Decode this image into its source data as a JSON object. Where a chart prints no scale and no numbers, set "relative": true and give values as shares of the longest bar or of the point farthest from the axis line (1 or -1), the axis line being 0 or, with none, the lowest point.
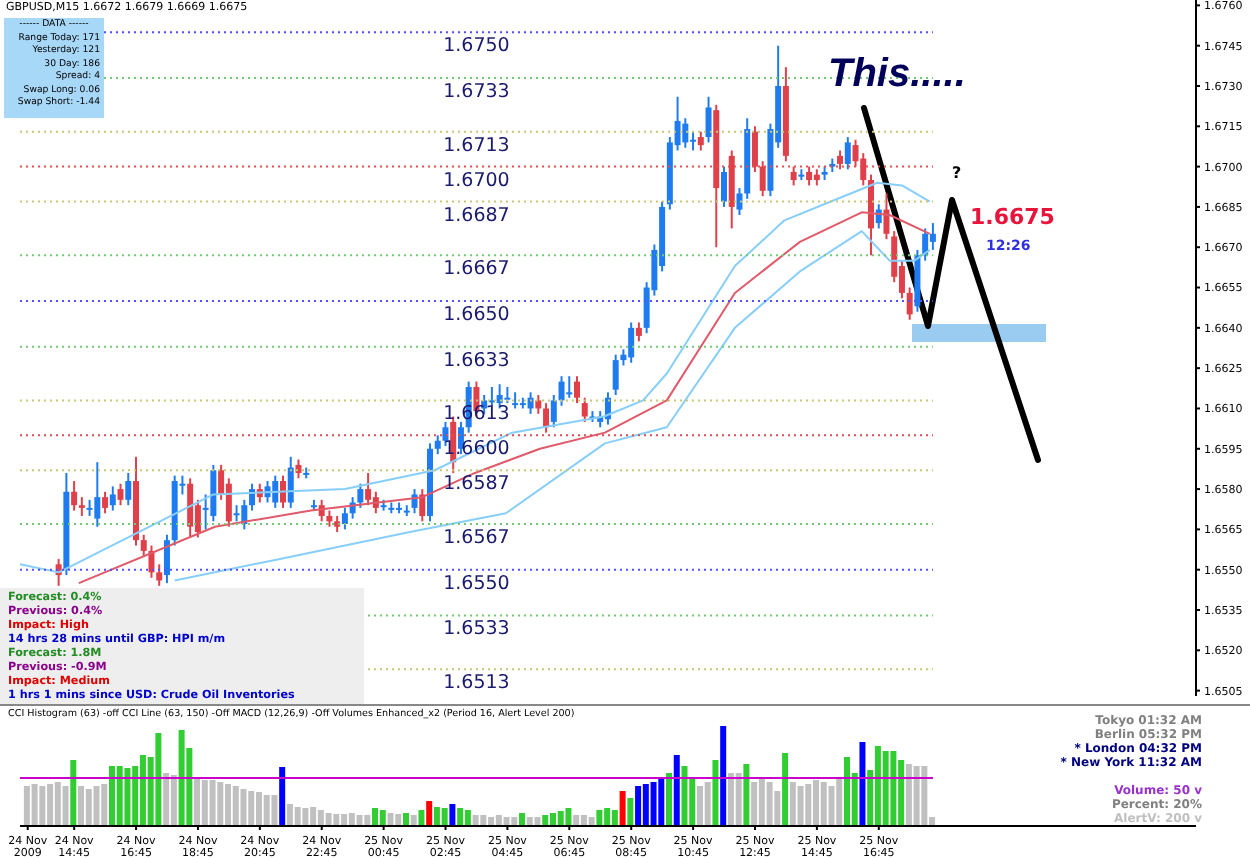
{
  "chart_data": [
    {
      "type": "candlestick",
      "title": "GBPUSD,M15  1.6672 1.6679 1.6669 1.6675",
      "x": [
        "2009-11-24T14:15",
        "2009-11-24T14:30",
        "2009-11-24T14:45",
        "2009-11-24T15:00",
        "2009-11-24T15:15",
        "2009-11-24T15:30",
        "2009-11-24T15:45",
        "2009-11-24T16:00",
        "2009-11-24T16:15",
        "2009-11-24T16:30",
        "2009-11-24T16:45",
        "2009-11-24T17:00",
        "2009-11-24T17:15",
        "2009-11-24T17:30",
        "2009-11-24T17:45",
        "2009-11-24T18:00",
        "2009-11-24T18:15",
        "2009-11-24T18:30",
        "2009-11-24T18:45",
        "2009-11-24T19:00",
        "2009-11-24T19:15",
        "2009-11-24T19:30",
        "2009-11-24T19:45",
        "2009-11-24T20:00",
        "2009-11-24T20:15",
        "2009-11-24T20:30",
        "2009-11-24T20:45",
        "2009-11-24T21:00",
        "2009-11-24T21:15",
        "2009-11-24T21:30",
        "2009-11-24T21:45",
        "2009-11-24T22:00",
        "2009-11-24T22:15",
        "2009-11-24T22:30",
        "2009-11-24T22:45",
        "2009-11-24T23:00",
        "2009-11-24T23:15",
        "2009-11-24T23:30",
        "2009-11-24T23:45",
        "2009-11-25T00:00",
        "2009-11-25T00:15",
        "2009-11-25T00:30",
        "2009-11-25T00:45",
        "2009-11-25T01:00",
        "2009-11-25T01:15",
        "2009-11-25T01:30",
        "2009-11-25T01:45",
        "2009-11-25T02:00",
        "2009-11-25T02:15",
        "2009-11-25T02:30",
        "2009-11-25T02:45",
        "2009-11-25T03:00",
        "2009-11-25T03:15",
        "2009-11-25T03:30",
        "2009-11-25T03:45",
        "2009-11-25T04:00",
        "2009-11-25T04:15",
        "2009-11-25T04:30",
        "2009-11-25T04:45",
        "2009-11-25T05:00",
        "2009-11-25T05:15",
        "2009-11-25T05:30",
        "2009-11-25T05:45",
        "2009-11-25T06:00",
        "2009-11-25T06:15",
        "2009-11-25T06:30",
        "2009-11-25T06:45",
        "2009-11-25T07:00",
        "2009-11-25T07:15",
        "2009-11-25T07:30",
        "2009-11-25T07:45",
        "2009-11-25T08:00",
        "2009-11-25T08:15",
        "2009-11-25T08:30",
        "2009-11-25T08:45",
        "2009-11-25T09:00",
        "2009-11-25T09:15",
        "2009-11-25T09:30",
        "2009-11-25T09:45",
        "2009-11-25T10:00",
        "2009-11-25T10:15",
        "2009-11-25T10:30",
        "2009-11-25T10:45",
        "2009-11-25T11:00",
        "2009-11-25T11:15",
        "2009-11-25T11:30",
        "2009-11-25T11:45",
        "2009-11-25T12:00",
        "2009-11-25T12:15",
        "2009-11-25T12:30",
        "2009-11-25T12:45",
        "2009-11-25T13:00",
        "2009-11-25T13:15",
        "2009-11-25T13:30",
        "2009-11-25T13:45",
        "2009-11-25T14:00",
        "2009-11-25T14:15",
        "2009-11-25T14:30",
        "2009-11-25T14:45",
        "2009-11-25T15:00",
        "2009-11-25T15:15",
        "2009-11-25T15:30",
        "2009-11-25T15:45",
        "2009-11-25T16:00",
        "2009-11-25T16:15",
        "2009-11-25T16:30",
        "2009-11-25T16:45",
        "2009-11-25T17:00",
        "2009-11-25T17:15",
        "2009-11-25T17:30",
        "2009-11-25T17:45",
        "2009-11-25T18:00",
        "2009-11-25T18:15",
        "2009-11-25T18:30"
      ],
      "ohlc": [
        [
          1.6552,
          1.6554,
          1.6544,
          1.6548
        ],
        [
          1.655,
          1.6586,
          1.6548,
          1.6579
        ],
        [
          1.6579,
          1.6583,
          1.6572,
          1.6574
        ],
        [
          1.6574,
          1.6577,
          1.657,
          1.6573
        ],
        [
          1.6573,
          1.6576,
          1.657,
          1.6573
        ],
        [
          1.6569,
          1.659,
          1.6566,
          1.6577
        ],
        [
          1.6577,
          1.6579,
          1.6571,
          1.6573
        ],
        [
          1.6574,
          1.6581,
          1.6572,
          1.6578
        ],
        [
          1.658,
          1.6582,
          1.6574,
          1.6576
        ],
        [
          1.6576,
          1.6586,
          1.6574,
          1.6583
        ],
        [
          1.6583,
          1.6592,
          1.6559,
          1.6561
        ],
        [
          1.6561,
          1.6563,
          1.6555,
          1.6557
        ],
        [
          1.6557,
          1.6559,
          1.6547,
          1.6549
        ],
        [
          1.6549,
          1.6552,
          1.6544,
          1.6546
        ],
        [
          1.6548,
          1.6563,
          1.6545,
          1.6561
        ],
        [
          1.6561,
          1.6585,
          1.6559,
          1.6583
        ],
        [
          1.6582,
          1.6585,
          1.6578,
          1.6582
        ],
        [
          1.6582,
          1.6584,
          1.6562,
          1.6566
        ],
        [
          1.6574,
          1.6576,
          1.6562,
          1.6564
        ],
        [
          1.6573,
          1.6578,
          1.6565,
          1.6573
        ],
        [
          1.657,
          1.6589,
          1.6568,
          1.6587
        ],
        [
          1.6587,
          1.6589,
          1.6576,
          1.6578
        ],
        [
          1.6582,
          1.6584,
          1.6566,
          1.6568
        ],
        [
          1.6571,
          1.6574,
          1.6568,
          1.6571
        ],
        [
          1.6567,
          1.6576,
          1.6565,
          1.6574
        ],
        [
          1.6574,
          1.6582,
          1.6572,
          1.658
        ],
        [
          1.658,
          1.6582,
          1.6575,
          1.6577
        ],
        [
          1.6577,
          1.6583,
          1.6575,
          1.6581
        ],
        [
          1.6575,
          1.6585,
          1.6573,
          1.6583
        ],
        [
          1.6583,
          1.6585,
          1.6573,
          1.6575
        ],
        [
          1.6575,
          1.6592,
          1.6573,
          1.6588
        ],
        [
          1.6589,
          1.6591,
          1.6584,
          1.6586
        ],
        [
          1.6586,
          1.6588,
          1.6584,
          1.6586
        ],
        [
          1.6574,
          1.6576,
          1.6572,
          1.6574
        ],
        [
          1.6574,
          1.6576,
          1.6568,
          1.657
        ],
        [
          1.657,
          1.6572,
          1.6566,
          1.6568
        ],
        [
          1.6568,
          1.657,
          1.6564,
          1.6566
        ],
        [
          1.6567,
          1.6573,
          1.6565,
          1.6571
        ],
        [
          1.6571,
          1.6577,
          1.6569,
          1.6575
        ],
        [
          1.6575,
          1.6582,
          1.6573,
          1.658
        ],
        [
          1.658,
          1.6586,
          1.6574,
          1.6576
        ],
        [
          1.6577,
          1.6579,
          1.6571,
          1.6573
        ],
        [
          1.6574,
          1.6576,
          1.6572,
          1.6574
        ],
        [
          1.6573,
          1.6575,
          1.6571,
          1.6573
        ],
        [
          1.6573,
          1.6575,
          1.6571,
          1.6573
        ],
        [
          1.6572,
          1.6574,
          1.657,
          1.6572
        ],
        [
          1.6573,
          1.658,
          1.6571,
          1.6578
        ],
        [
          1.6578,
          1.658,
          1.6568,
          1.657
        ],
        [
          1.657,
          1.6597,
          1.6568,
          1.6595
        ],
        [
          1.6595,
          1.66,
          1.6593,
          1.6598
        ],
        [
          1.6598,
          1.6605,
          1.6596,
          1.6603
        ],
        [
          1.6605,
          1.6607,
          1.6586,
          1.659
        ],
        [
          1.6595,
          1.6605,
          1.6593,
          1.6603
        ],
        [
          1.6603,
          1.662,
          1.6601,
          1.6618
        ],
        [
          1.6618,
          1.662,
          1.6607,
          1.6609
        ],
        [
          1.661,
          1.6615,
          1.6608,
          1.6613
        ],
        [
          1.6613,
          1.6618,
          1.6611,
          1.6613
        ],
        [
          1.6612,
          1.6619,
          1.661,
          1.6615
        ],
        [
          1.6614,
          1.6618,
          1.6612,
          1.6614
        ],
        [
          1.6612,
          1.6616,
          1.661,
          1.6612
        ],
        [
          1.6612,
          1.6614,
          1.661,
          1.6612
        ],
        [
          1.661,
          1.6616,
          1.6608,
          1.6614
        ],
        [
          1.6613,
          1.6615,
          1.6608,
          1.661
        ],
        [
          1.661,
          1.6612,
          1.6601,
          1.6603
        ],
        [
          1.6605,
          1.6615,
          1.6603,
          1.6613
        ],
        [
          1.6613,
          1.6622,
          1.6611,
          1.662
        ],
        [
          1.6616,
          1.6622,
          1.6614,
          1.6616
        ],
        [
          1.662,
          1.6622,
          1.6612,
          1.6614
        ],
        [
          1.6612,
          1.6614,
          1.6605,
          1.6607
        ],
        [
          1.6607,
          1.6609,
          1.6605,
          1.6607
        ],
        [
          1.6605,
          1.6609,
          1.6603,
          1.6607
        ],
        [
          1.6606,
          1.6616,
          1.6604,
          1.6614
        ],
        [
          1.6617,
          1.663,
          1.6615,
          1.6628
        ],
        [
          1.6628,
          1.6632,
          1.6626,
          1.663
        ],
        [
          1.6629,
          1.6642,
          1.6627,
          1.664
        ],
        [
          1.664,
          1.6642,
          1.6635,
          1.6637
        ],
        [
          1.664,
          1.6657,
          1.6638,
          1.6655
        ],
        [
          1.6654,
          1.6671,
          1.6652,
          1.6669
        ],
        [
          1.6663,
          1.6687,
          1.6661,
          1.6685
        ],
        [
          1.6686,
          1.6711,
          1.6684,
          1.6709
        ],
        [
          1.6708,
          1.6726,
          1.6706,
          1.6717
        ],
        [
          1.6709,
          1.6718,
          1.6707,
          1.6716
        ],
        [
          1.671,
          1.6713,
          1.6706,
          1.671
        ],
        [
          1.6711,
          1.6713,
          1.6706,
          1.6708
        ],
        [
          1.6711,
          1.6726,
          1.6709,
          1.6722
        ],
        [
          1.6721,
          1.6723,
          1.667,
          1.6692
        ],
        [
          1.6687,
          1.67,
          1.6685,
          1.6698
        ],
        [
          1.6704,
          1.6706,
          1.6677,
          1.6685
        ],
        [
          1.6684,
          1.6692,
          1.6682,
          1.669
        ],
        [
          1.669,
          1.6718,
          1.6688,
          1.6714
        ],
        [
          1.6713,
          1.6715,
          1.6698,
          1.67
        ],
        [
          1.67,
          1.6702,
          1.6689,
          1.6691
        ],
        [
          1.6691,
          1.6716,
          1.6689,
          1.6714
        ],
        [
          1.6709,
          1.6745,
          1.6707,
          1.673
        ],
        [
          1.673,
          1.6737,
          1.6702,
          1.6704
        ],
        [
          1.6698,
          1.67,
          1.6693,
          1.6695
        ],
        [
          1.6697,
          1.6699,
          1.6695,
          1.6697
        ],
        [
          1.6698,
          1.67,
          1.6693,
          1.6695
        ],
        [
          1.6697,
          1.6699,
          1.6693,
          1.6695
        ],
        [
          1.6697,
          1.67,
          1.6695,
          1.6698
        ],
        [
          1.67,
          1.6703,
          1.6698,
          1.6701
        ],
        [
          1.6704,
          1.6706,
          1.6699,
          1.6701
        ],
        [
          1.6701,
          1.6711,
          1.6699,
          1.6709
        ],
        [
          1.6708,
          1.671,
          1.67,
          1.6702
        ],
        [
          1.6703,
          1.6705,
          1.6693,
          1.6695
        ],
        [
          1.6695,
          1.6697,
          1.6667,
          1.6677
        ],
        [
          1.6679,
          1.6686,
          1.6677,
          1.6684
        ],
        [
          1.6684,
          1.669,
          1.6673,
          1.6675
        ],
        [
          1.6674,
          1.6676,
          1.6657,
          1.6659
        ],
        [
          1.6663,
          1.6665,
          1.6651,
          1.6653
        ],
        [
          1.6653,
          1.6655,
          1.6643,
          1.6645
        ],
        [
          1.6648,
          1.6669,
          1.6646,
          1.6667
        ],
        [
          1.6667,
          1.6677,
          1.6665,
          1.6675
        ],
        [
          1.6672,
          1.6679,
          1.6669,
          1.6675
        ]
      ],
      "series": [
        {
          "type": "line",
          "color": "#87cefa",
          "x": [
            "2009-11-24T13:00",
            "2009-11-24T14:15",
            "2009-11-24T19:15",
            "2009-11-24T23:30",
            "2009-11-25T02:24",
            "2009-11-25T04:54",
            "2009-11-25T07:52",
            "2009-11-25T09:08",
            "2009-11-25T09:54",
            "2009-11-25T12:06",
            "2009-11-25T13:42",
            "2009-11-25T15:12",
            "2009-11-25T16:42",
            "2009-11-25T17:30",
            "2009-11-25T18:24"
          ],
          "values": [
            1.6552,
            1.6549,
            1.6578,
            1.658,
            1.6587,
            1.6601,
            1.6607,
            1.6613,
            1.6623,
            1.6663,
            1.668,
            1.6687,
            1.6694,
            1.6693,
            1.6687
          ]
        },
        {
          "type": "line",
          "color": "#e05a6a",
          "x": [
            "2009-11-24T14:54",
            "2009-11-24T19:18",
            "2009-11-24T22:24",
            "2009-11-25T02:00",
            "2009-11-25T03:42",
            "2009-11-25T05:48",
            "2009-11-25T07:54",
            "2009-11-25T09:54",
            "2009-11-25T12:06",
            "2009-11-25T14:12",
            "2009-11-25T16:12",
            "2009-11-25T17:06",
            "2009-11-25T18:24"
          ],
          "values": [
            1.6545,
            1.6566,
            1.6572,
            1.6577,
            1.6586,
            1.6595,
            1.6601,
            1.6613,
            1.6653,
            1.6672,
            1.6683,
            1.6682,
            1.6675
          ]
        },
        {
          "type": "line",
          "color": "#87cefa",
          "x": [
            "2009-11-24T18:00",
            "2009-11-24T21:24",
            "2009-11-25T01:36",
            "2009-11-25T04:42",
            "2009-11-25T07:54",
            "2009-11-25T09:54",
            "2009-11-25T12:06",
            "2009-11-25T14:12",
            "2009-11-25T16:12",
            "2009-11-25T17:06",
            "2009-11-25T17:54",
            "2009-11-25T18:24"
          ],
          "values": [
            1.6546,
            1.6554,
            1.6564,
            1.6571,
            1.6597,
            1.6603,
            1.664,
            1.6661,
            1.6676,
            1.6665,
            1.6665,
            1.6669
          ]
        }
      ],
      "xlim": [
        "2009-11-24T13:00",
        "2009-11-26T03:00"
      ],
      "ylim": [
        1.6503,
        1.6762
      ],
      "yticks": [
        {
          "value": 1.6505,
          "label": "1.6505"
        },
        {
          "value": 1.652,
          "label": "1.6520"
        },
        {
          "value": 1.6535,
          "label": "1.6535"
        },
        {
          "value": 1.655,
          "label": "1.6550"
        },
        {
          "value": 1.6565,
          "label": "1.6565"
        },
        {
          "value": 1.658,
          "label": "1.6580"
        },
        {
          "value": 1.6595,
          "label": "1.6595"
        },
        {
          "value": 1.661,
          "label": "1.6610"
        },
        {
          "value": 1.6625,
          "label": "1.6625"
        },
        {
          "value": 1.664,
          "label": "1.6640"
        },
        {
          "value": 1.6655,
          "label": "1.6655"
        },
        {
          "value": 1.667,
          "label": "1.6670"
        },
        {
          "value": 1.6685,
          "label": "1.6685"
        },
        {
          "value": 1.67,
          "label": "1.6700"
        },
        {
          "value": 1.6715,
          "label": "1.6715"
        },
        {
          "value": 1.673,
          "label": "1.6730"
        },
        {
          "value": 1.6745,
          "label": "1.6745"
        },
        {
          "value": 1.676,
          "label": "1.6760"
        }
      ],
      "tick_labels": "y",
      "ref_lines": [
        {
          "axis": "y",
          "value": 1.675,
          "label": "1.6750",
          "color": "#5050ff",
          "line_style": "dotted"
        },
        {
          "axis": "y",
          "value": 1.6733,
          "label": "1.6733",
          "color": "#70cc70",
          "line_style": "dotted"
        },
        {
          "axis": "y",
          "value": 1.6713,
          "label": "1.6713",
          "color": "#c8c870",
          "line_style": "dotted"
        },
        {
          "axis": "y",
          "value": 1.67,
          "label": "1.6700",
          "color": "#e05050",
          "line_style": "dotted"
        },
        {
          "axis": "y",
          "value": 1.6687,
          "label": "1.6687",
          "color": "#c8c870",
          "line_style": "dotted"
        },
        {
          "axis": "y",
          "value": 1.6667,
          "label": "1.6667",
          "color": "#70cc70",
          "line_style": "dotted"
        },
        {
          "axis": "y",
          "value": 1.665,
          "label": "1.6650",
          "color": "#5050ff",
          "line_style": "dotted"
        },
        {
          "axis": "y",
          "value": 1.6633,
          "label": "1.6633",
          "color": "#70cc70",
          "line_style": "dotted"
        },
        {
          "axis": "y",
          "value": 1.6613,
          "label": "1.6613",
          "color": "#c8c870",
          "line_style": "dotted"
        },
        {
          "axis": "y",
          "value": 1.66,
          "label": "1.6600",
          "color": "#e05050",
          "line_style": "dotted"
        },
        {
          "axis": "y",
          "value": 1.6587,
          "label": "1.6587",
          "color": "#c8c870",
          "line_style": "dotted"
        },
        {
          "axis": "y",
          "value": 1.6567,
          "label": "1.6567",
          "color": "#70cc70",
          "line_style": "dotted"
        },
        {
          "axis": "y",
          "value": 1.655,
          "label": "1.6550",
          "color": "#5050ff",
          "line_style": "dotted"
        },
        {
          "axis": "y",
          "value": 1.6533,
          "label": "1.6533",
          "color": "#70cc70",
          "line_style": "dotted"
        },
        {
          "axis": "y",
          "value": 1.6513,
          "label": "1.6513",
          "color": "#c8c870",
          "line_style": "dotted"
        }
      ],
      "annotations": [
        "------ DATA ------",
        "Range Today:  171",
        "Yesterday:  121",
        "30 Day:  186",
        "Spread:  4",
        "Swap Long:  0.06",
        "Swap Short:  -1.44",
        "Forecast: 0.4%",
        "Previous: 0.4%",
        "Impact: High",
        "14 hrs 28 mins until GBP: HPI m/m",
        "Forecast: 1.8M",
        "Previous: -0.9M",
        "Impact: Medium",
        "1 hrs 1 mins since USD: Crude Oil Inventories",
        "This.....",
        "?",
        "1.6675",
        "12:26"
      ]
    },
    {
      "type": "bar",
      "relative": true,
      "x": [
        "2009-11-24T13:15",
        "2009-11-24T13:30",
        "2009-11-24T13:45",
        "2009-11-24T14:00",
        "2009-11-24T14:15",
        "2009-11-24T14:30",
        "2009-11-24T14:45",
        "2009-11-24T15:00",
        "2009-11-24T15:15",
        "2009-11-24T15:30",
        "2009-11-24T15:45",
        "2009-11-24T16:00",
        "2009-11-24T16:15",
        "2009-11-24T16:30",
        "2009-11-24T16:45",
        "2009-11-24T17:00",
        "2009-11-24T17:15",
        "2009-11-24T17:30",
        "2009-11-24T17:45",
        "2009-11-24T18:00",
        "2009-11-24T18:15",
        "2009-11-24T18:30",
        "2009-11-24T18:45",
        "2009-11-24T19:00",
        "2009-11-24T19:15",
        "2009-11-24T19:30",
        "2009-11-24T19:45",
        "2009-11-24T20:00",
        "2009-11-24T20:15",
        "2009-11-24T20:30",
        "2009-11-24T20:45",
        "2009-11-24T21:00",
        "2009-11-24T21:15",
        "2009-11-24T21:30",
        "2009-11-24T21:45",
        "2009-11-24T22:00",
        "2009-11-24T22:15",
        "2009-11-24T22:30",
        "2009-11-24T22:45",
        "2009-11-24T23:00",
        "2009-11-24T23:15",
        "2009-11-24T23:30",
        "2009-11-24T23:45",
        "2009-11-25T00:00",
        "2009-11-25T00:15",
        "2009-11-25T00:30",
        "2009-11-25T00:45",
        "2009-11-25T01:00",
        "2009-11-25T01:15",
        "2009-11-25T01:30",
        "2009-11-25T01:45",
        "2009-11-25T02:00",
        "2009-11-25T02:15",
        "2009-11-25T02:30",
        "2009-11-25T02:45",
        "2009-11-25T03:00",
        "2009-11-25T03:15",
        "2009-11-25T03:30",
        "2009-11-25T03:45",
        "2009-11-25T04:00",
        "2009-11-25T04:15",
        "2009-11-25T04:30",
        "2009-11-25T04:45",
        "2009-11-25T05:00",
        "2009-11-25T05:15",
        "2009-11-25T05:30",
        "2009-11-25T05:45",
        "2009-11-25T06:00",
        "2009-11-25T06:15",
        "2009-11-25T06:30",
        "2009-11-25T06:45",
        "2009-11-25T07:00",
        "2009-11-25T07:15",
        "2009-11-25T07:30",
        "2009-11-25T07:45",
        "2009-11-25T08:00",
        "2009-11-25T08:15",
        "2009-11-25T08:30",
        "2009-11-25T08:45",
        "2009-11-25T09:00",
        "2009-11-25T09:15",
        "2009-11-25T09:30",
        "2009-11-25T09:45",
        "2009-11-25T10:00",
        "2009-11-25T10:15",
        "2009-11-25T10:30",
        "2009-11-25T10:45",
        "2009-11-25T11:00",
        "2009-11-25T11:15",
        "2009-11-25T11:30",
        "2009-11-25T11:45",
        "2009-11-25T12:00",
        "2009-11-25T12:15",
        "2009-11-25T12:30",
        "2009-11-25T12:45",
        "2009-11-25T13:00",
        "2009-11-25T13:15",
        "2009-11-25T13:30",
        "2009-11-25T13:45",
        "2009-11-25T14:00",
        "2009-11-25T14:15",
        "2009-11-25T14:30",
        "2009-11-25T14:45",
        "2009-11-25T15:00",
        "2009-11-25T15:15",
        "2009-11-25T15:30",
        "2009-11-25T15:45",
        "2009-11-25T16:00",
        "2009-11-25T16:15",
        "2009-11-25T16:30",
        "2009-11-25T16:45",
        "2009-11-25T17:00",
        "2009-11-25T17:15",
        "2009-11-25T17:30",
        "2009-11-25T17:45",
        "2009-11-25T18:00",
        "2009-11-25T18:15",
        "2009-11-25T18:30"
      ],
      "values": [
        0.4,
        0.42,
        0.4,
        0.42,
        0.44,
        0.4,
        0.66,
        0.4,
        0.37,
        0.4,
        0.42,
        0.6,
        0.6,
        0.58,
        0.6,
        0.71,
        0.69,
        0.93,
        0.53,
        0.51,
        0.96,
        0.78,
        0.49,
        0.46,
        0.46,
        0.44,
        0.42,
        0.4,
        0.37,
        0.35,
        0.34,
        0.31,
        0.31,
        0.59,
        0.22,
        0.19,
        0.18,
        0.19,
        0.16,
        0.13,
        0.12,
        0.12,
        0.13,
        0.11,
        0.11,
        0.18,
        0.16,
        0.13,
        0.12,
        0.13,
        0.11,
        0.16,
        0.25,
        0.19,
        0.18,
        0.22,
        0.18,
        0.16,
        0.11,
        0.11,
        0.09,
        0.11,
        0.09,
        0.09,
        0.13,
        0.09,
        0.09,
        0.11,
        0.13,
        0.15,
        0.18,
        0.11,
        0.11,
        0.09,
        0.16,
        0.18,
        0.16,
        0.35,
        0.28,
        0.4,
        0.42,
        0.44,
        0.47,
        0.53,
        0.71,
        0.6,
        0.49,
        0.4,
        0.44,
        0.66,
        1,
        0.53,
        0.53,
        0.62,
        0.44,
        0.49,
        0.44,
        0.35,
        0.73,
        0.44,
        0.4,
        0.42,
        0.46,
        0.44,
        0.4,
        0.49,
        0.69,
        0.53,
        0.84,
        0.56,
        0.8,
        0.75,
        0.75,
        0.66,
        0.62,
        0.6,
        0.6,
        0.09
      ],
      "colors": [
        "#c0c0c0",
        "#c0c0c0",
        "#c0c0c0",
        "#c0c0c0",
        "#c0c0c0",
        "#c0c0c0",
        "#32cd32",
        "#c0c0c0",
        "#c0c0c0",
        "#c0c0c0",
        "#c0c0c0",
        "#32cd32",
        "#32cd32",
        "#32cd32",
        "#32cd32",
        "#32cd32",
        "#32cd32",
        "#32cd32",
        "#c0c0c0",
        "#c0c0c0",
        "#32cd32",
        "#32cd32",
        "#c0c0c0",
        "#c0c0c0",
        "#c0c0c0",
        "#c0c0c0",
        "#c0c0c0",
        "#c0c0c0",
        "#c0c0c0",
        "#c0c0c0",
        "#c0c0c0",
        "#c0c0c0",
        "#c0c0c0",
        "#0000ff",
        "#c0c0c0",
        "#c0c0c0",
        "#c0c0c0",
        "#c0c0c0",
        "#c0c0c0",
        "#c0c0c0",
        "#c0c0c0",
        "#c0c0c0",
        "#c0c0c0",
        "#c0c0c0",
        "#c0c0c0",
        "#32cd32",
        "#32cd32",
        "#c0c0c0",
        "#c0c0c0",
        "#32cd32",
        "#c0c0c0",
        "#32cd32",
        "#ff0000",
        "#32cd32",
        "#32cd32",
        "#0000ff",
        "#32cd32",
        "#32cd32",
        "#c0c0c0",
        "#c0c0c0",
        "#c0c0c0",
        "#c0c0c0",
        "#c0c0c0",
        "#c0c0c0",
        "#32cd32",
        "#c0c0c0",
        "#c0c0c0",
        "#32cd32",
        "#32cd32",
        "#32cd32",
        "#32cd32",
        "#c0c0c0",
        "#c0c0c0",
        "#c0c0c0",
        "#32cd32",
        "#32cd32",
        "#32cd32",
        "#ff0000",
        "#32cd32",
        "#0000ff",
        "#0000ff",
        "#0000ff",
        "#0000ff",
        "#32cd32",
        "#0000ff",
        "#32cd32",
        "#32cd32",
        "#c0c0c0",
        "#c0c0c0",
        "#32cd32",
        "#0000ff",
        "#c0c0c0",
        "#c0c0c0",
        "#32cd32",
        "#c0c0c0",
        "#c0c0c0",
        "#c0c0c0",
        "#c0c0c0",
        "#32cd32",
        "#c0c0c0",
        "#c0c0c0",
        "#c0c0c0",
        "#c0c0c0",
        "#c0c0c0",
        "#c0c0c0",
        "#c0c0c0",
        "#32cd32",
        "#32cd32",
        "#0000ff",
        "#32cd32",
        "#32cd32",
        "#32cd32",
        "#32cd32",
        "#32cd32",
        "#c0c0c0",
        "#c0c0c0",
        "#c0c0c0",
        "#c0c0c0"
      ],
      "xlim": [
        "2009-11-24T13:00",
        "2009-11-26T03:00"
      ],
      "xticks": [
        {
          "value": "2009-11-24T13:15",
          "label": "24 Nov 2009"
        },
        {
          "value": "2009-11-24T14:45",
          "label": "24 Nov 14:45"
        },
        {
          "value": "2009-11-24T16:45",
          "label": "24 Nov 16:45"
        },
        {
          "value": "2009-11-24T18:45",
          "label": "24 Nov 18:45"
        },
        {
          "value": "2009-11-24T20:45",
          "label": "24 Nov 20:45"
        },
        {
          "value": "2009-11-24T22:45",
          "label": "24 Nov 22:45"
        },
        {
          "value": "2009-11-25T00:45",
          "label": "25 Nov 00:45"
        },
        {
          "value": "2009-11-25T02:45",
          "label": "25 Nov 02:45"
        },
        {
          "value": "2009-11-25T04:45",
          "label": "25 Nov 04:45"
        },
        {
          "value": "2009-11-25T06:45",
          "label": "25 Nov 06:45"
        },
        {
          "value": "2009-11-25T08:45",
          "label": "25 Nov 08:45"
        },
        {
          "value": "2009-11-25T10:45",
          "label": "25 Nov 10:45"
        },
        {
          "value": "2009-11-25T12:45",
          "label": "25 Nov 12:45"
        },
        {
          "value": "2009-11-25T14:45",
          "label": "25 Nov 14:45"
        },
        {
          "value": "2009-11-25T16:45",
          "label": "25 Nov 16:45"
        }
      ],
      "tick_labels": "x",
      "ref_lines": [
        {
          "axis": "y",
          "value": 0.48,
          "color": "#cc00cc"
        }
      ],
      "annotations": [
        "CCI Histogram (63) -off   CCI Line (63, 150) -Off   MACD (12,26,9) -Off   Volumes Enhanced_x2 (Period 16, Alert Level 200)",
        "Tokyo  01:32 AM",
        "Berlin  05:32 PM",
        "* London  04:32 PM",
        "* New York  11:32 AM",
        "Volume:  50 v",
        "Percent:  20%",
        "AlertV:  200 v"
      ]
    }
  ]
}
